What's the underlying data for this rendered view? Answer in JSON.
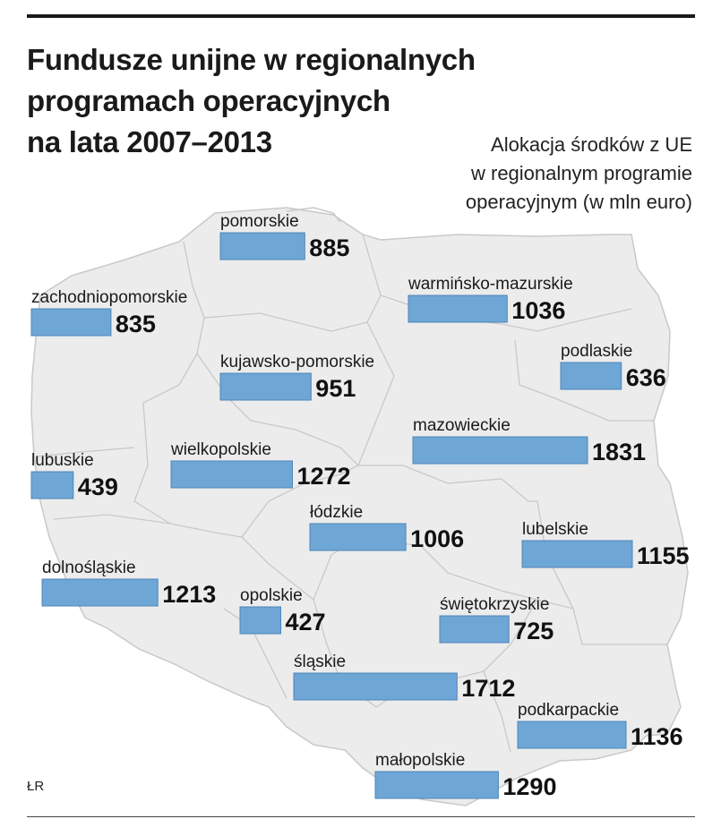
{
  "header": {
    "title_lines": [
      "Fundusze unijne w regionalnych",
      "programach operacyjnych",
      "na lata 2007–2013"
    ],
    "subtitle_lines": [
      "Alokacja środków z UE",
      "w regionalnym programie",
      "operacyjnym (w mln euro)"
    ]
  },
  "footer": {
    "source": "ŁR"
  },
  "chart_data": {
    "type": "bar",
    "categories": [
      "pomorskie",
      "zachodniopomorskie",
      "warmińsko-mazurskie",
      "kujawsko-pomorskie",
      "podlaskie",
      "wielkopolskie",
      "mazowieckie",
      "lubuskie",
      "łódzkie",
      "lubelskie",
      "dolnośląskie",
      "opolskie",
      "świętokrzyskie",
      "śląskie",
      "podkarpackie",
      "małopolskie"
    ],
    "values": [
      885,
      835,
      1036,
      951,
      636,
      1272,
      1831,
      439,
      1006,
      1155,
      1213,
      427,
      725,
      1712,
      1136,
      1290
    ],
    "title": "Fundusze unijne w regionalnych programach operacyjnych na lata 2007–2013",
    "ylabel": "Alokacja środków z UE w regionalnym programie operacyjnym (w mln euro)",
    "colors": {
      "bar": "#6ea6d6",
      "map_fill": "#ececec",
      "map_border": "#c9c9c9"
    }
  }
}
